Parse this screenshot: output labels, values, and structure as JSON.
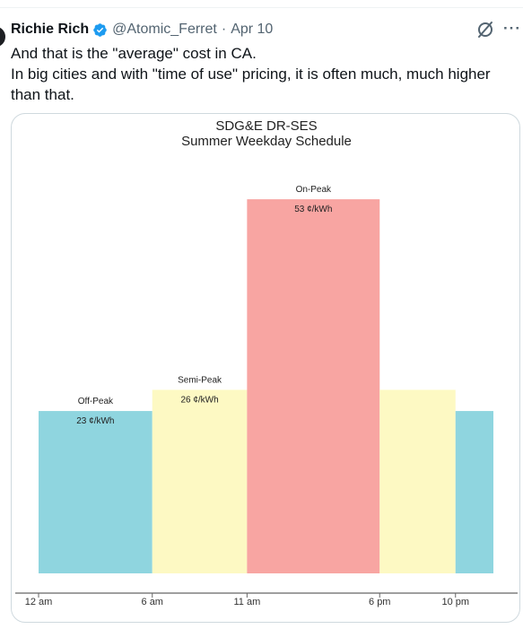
{
  "tweet": {
    "author_name": "Richie Rich",
    "handle": "@Atomic_Ferret",
    "separator": "·",
    "date": "Apr 10",
    "more_label": "···",
    "text_lines": [
      "And that is the \"average\" cost in CA.",
      "In big cities and with \"time of use\" pricing, it is often much, much higher",
      "than that."
    ]
  },
  "colors": {
    "verified_badge": "#1d9bf0",
    "off_peak": "#8fd5df",
    "semi_peak": "#fdf9c3",
    "on_peak": "#f8a5a2"
  },
  "icons": {
    "badge": "verified-badge-icon",
    "grok": "grok-icon",
    "more": "more-options-icon"
  },
  "chart_data": {
    "type": "bar",
    "title": "SDG&E DR-SES",
    "subtitle": "Summer Weekday Schedule",
    "xlabel": "",
    "ylabel": "",
    "x_ticks": [
      {
        "hour": 0,
        "label": "12 am"
      },
      {
        "hour": 6,
        "label": "6 am"
      },
      {
        "hour": 11,
        "label": "11 am"
      },
      {
        "hour": 18,
        "label": "6 pm"
      },
      {
        "hour": 22,
        "label": "10 pm"
      }
    ],
    "x_range": [
      0,
      24
    ],
    "ylim": [
      0,
      60
    ],
    "grid": false,
    "legend": "none",
    "unit": "¢/kWh",
    "periods": [
      {
        "start": 0,
        "end": 6,
        "value": 23,
        "color": "#8fd5df",
        "name": "Off-Peak",
        "label": "23 ¢/kWh"
      },
      {
        "start": 6,
        "end": 11,
        "value": 26,
        "color": "#fdf9c3",
        "name": "Semi-Peak",
        "label": "26 ¢/kWh"
      },
      {
        "start": 11,
        "end": 18,
        "value": 53,
        "color": "#f8a5a2",
        "name": "On-Peak",
        "label": "53 ¢/kWh"
      },
      {
        "start": 18,
        "end": 22,
        "value": 26,
        "color": "#fdf9c3",
        "name": "",
        "label": ""
      },
      {
        "start": 22,
        "end": 24,
        "value": 23,
        "color": "#8fd5df",
        "name": "",
        "label": ""
      }
    ]
  }
}
